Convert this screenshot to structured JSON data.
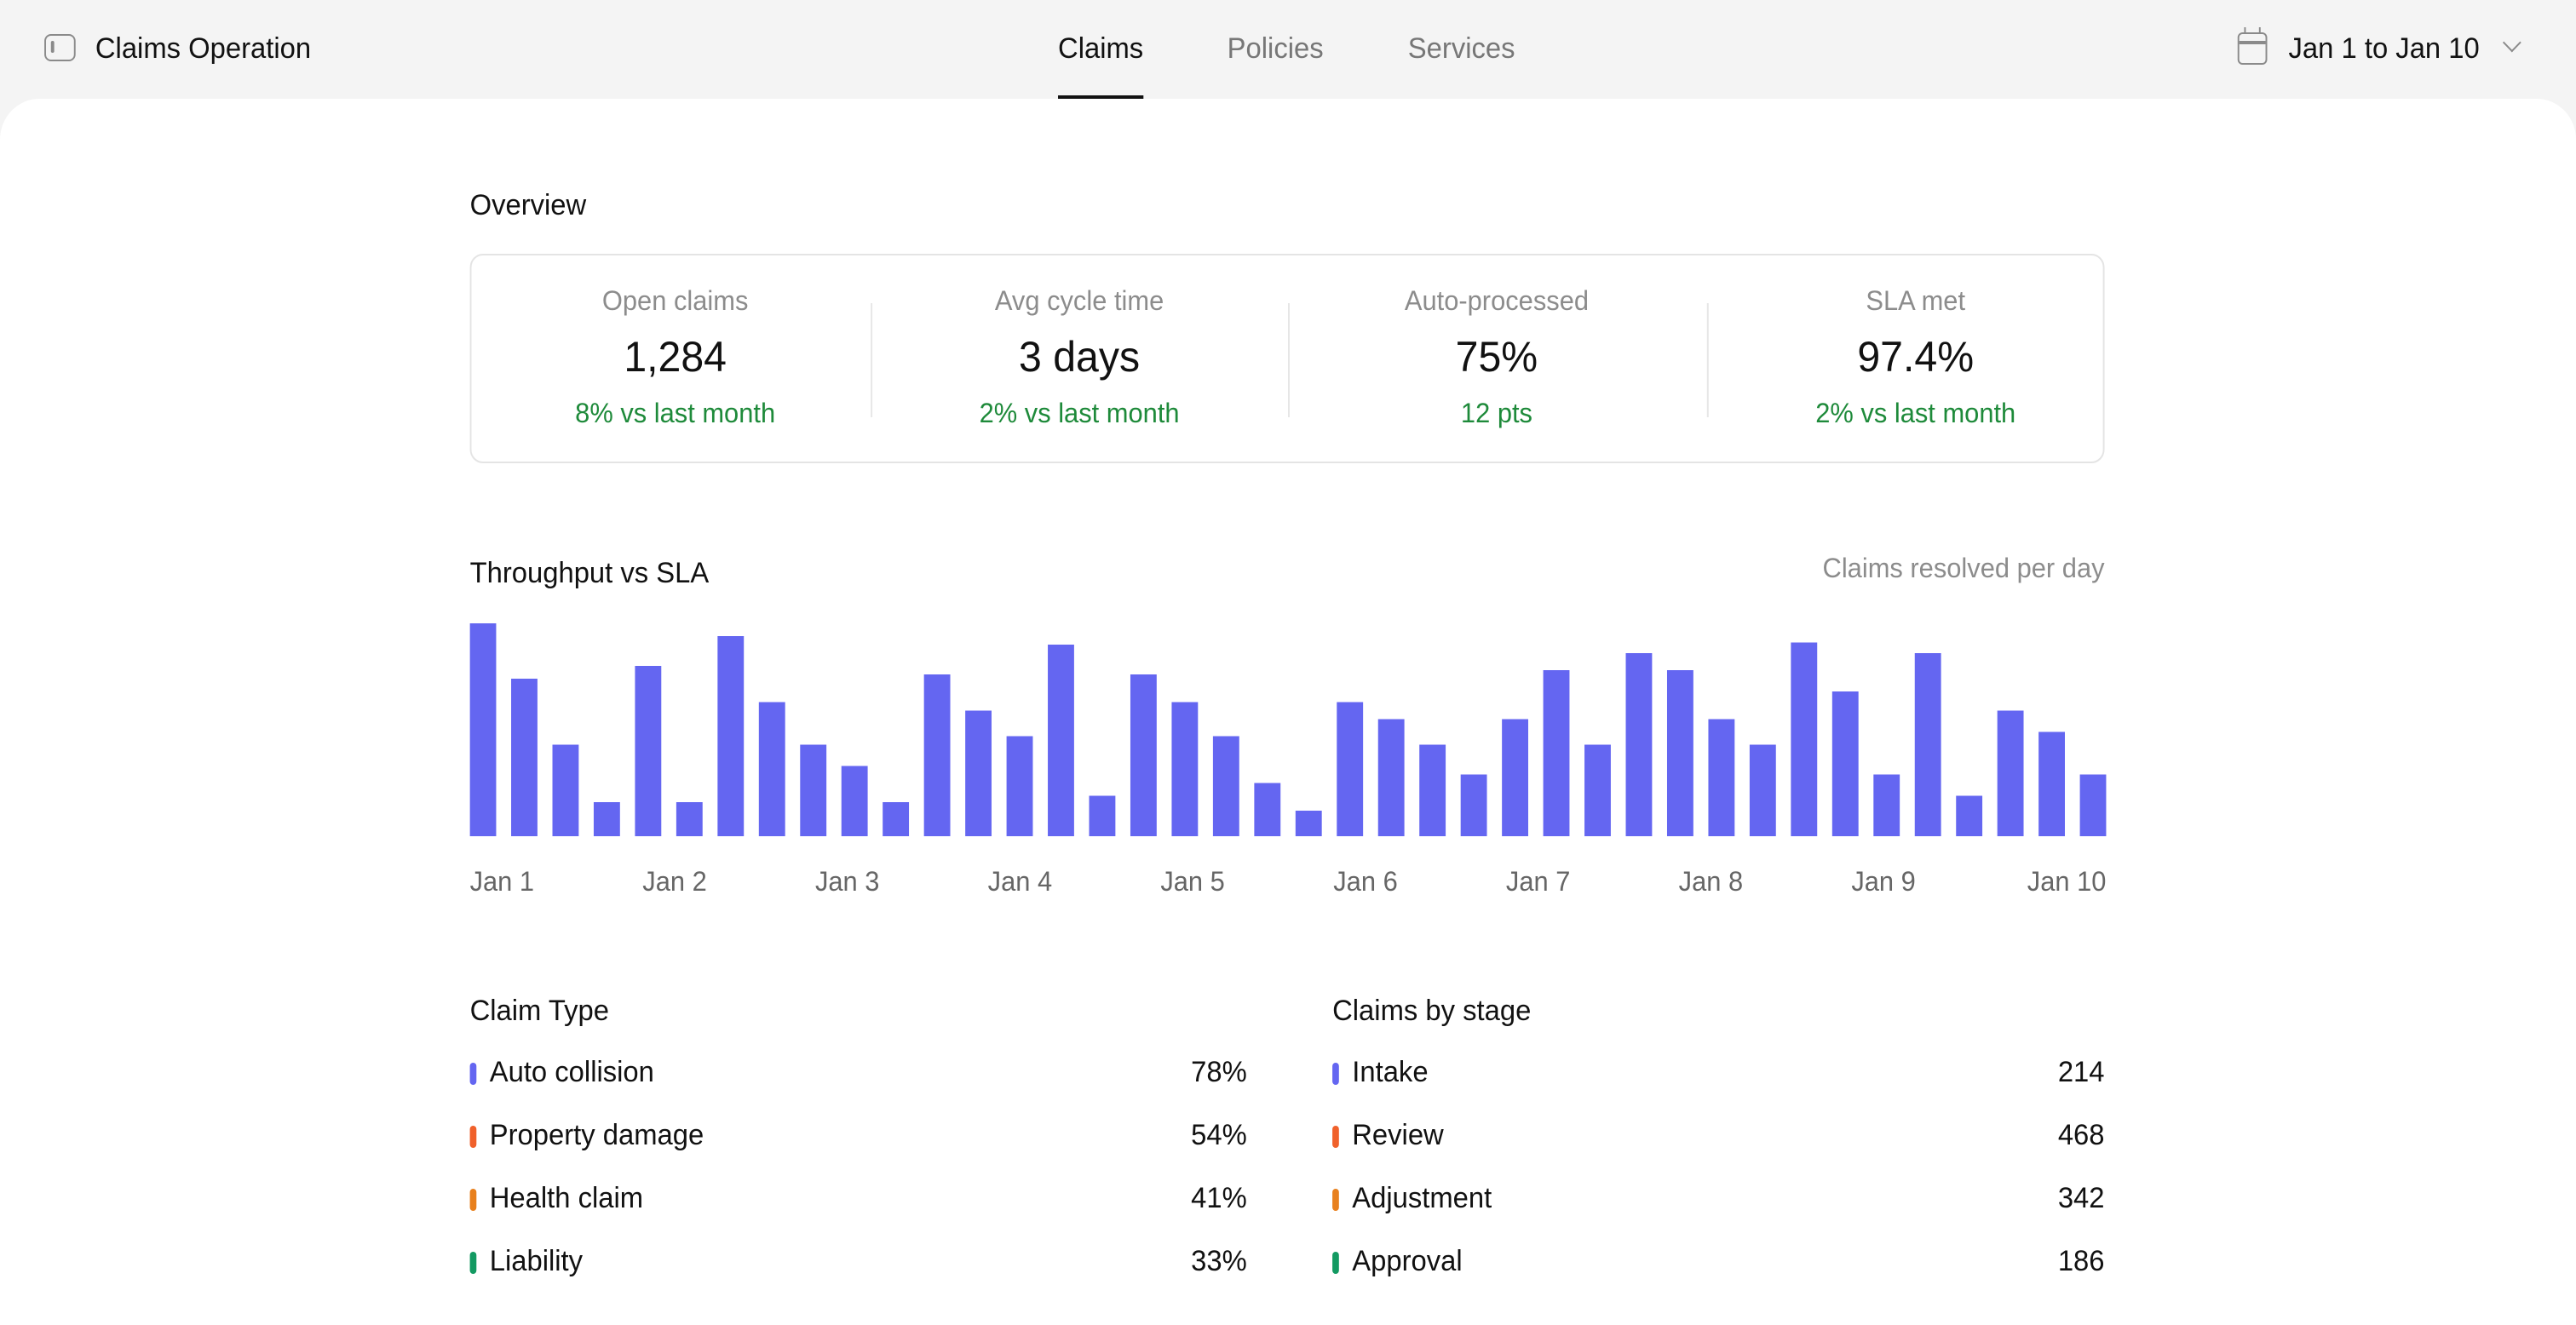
{
  "app": {
    "title": "Claims Operation"
  },
  "tabs": [
    {
      "label": "Claims",
      "active": true
    },
    {
      "label": "Policies",
      "active": false
    },
    {
      "label": "Services",
      "active": false
    }
  ],
  "date_range": {
    "label": "Jan 1 to Jan 10"
  },
  "overview": {
    "title": "Overview",
    "kpis": [
      {
        "label": "Open claims",
        "value": "1,284",
        "delta": "8% vs last month"
      },
      {
        "label": "Avg cycle time",
        "value": "3 days",
        "delta": "2% vs last month"
      },
      {
        "label": "Auto-processed",
        "value": "75%",
        "delta": "12 pts"
      },
      {
        "label": "SLA met",
        "value": "97.4%",
        "delta": "2% vs last month"
      }
    ]
  },
  "throughput": {
    "title": "Throughput vs SLA",
    "subtitle": "Claims resolved per day"
  },
  "chart_data": {
    "type": "bar",
    "title": "Throughput vs SLA",
    "subtitle": "Claims resolved per day",
    "x_tick_labels": [
      "Jan 1",
      "Jan 2",
      "Jan 3",
      "Jan 4",
      "Jan 5",
      "Jan 6",
      "Jan 7",
      "Jan 8",
      "Jan 9",
      "Jan 10"
    ],
    "values": [
      100,
      74,
      43,
      16,
      80,
      16,
      94,
      63,
      43,
      33,
      16,
      76,
      59,
      47,
      90,
      19,
      76,
      63,
      47,
      25,
      12,
      63,
      55,
      43,
      29,
      55,
      78,
      43,
      86,
      78,
      55,
      43,
      91,
      68,
      29,
      86,
      19,
      59,
      49,
      29
    ],
    "bar_color": "#6466f1",
    "grid": false,
    "legend": "none"
  },
  "claim_type": {
    "title": "Claim Type",
    "rows": [
      {
        "label": "Auto collision",
        "value": "78%",
        "color": "#6466f1"
      },
      {
        "label": "Property damage",
        "value": "54%",
        "color": "#f0612b"
      },
      {
        "label": "Health claim",
        "value": "41%",
        "color": "#e8801d"
      },
      {
        "label": "Liability",
        "value": "33%",
        "color": "#139a62"
      }
    ]
  },
  "claims_by_stage": {
    "title": "Claims by stage",
    "rows": [
      {
        "label": "Intake",
        "value": "214",
        "color": "#6466f1"
      },
      {
        "label": "Review",
        "value": "468",
        "color": "#f0612b"
      },
      {
        "label": "Adjustment",
        "value": "342",
        "color": "#e8801d"
      },
      {
        "label": "Approval",
        "value": "186",
        "color": "#139a62"
      }
    ]
  }
}
